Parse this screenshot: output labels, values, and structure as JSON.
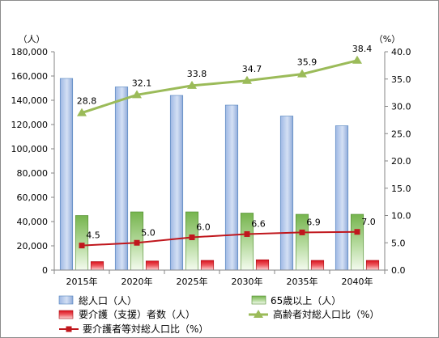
{
  "chart_data": {
    "type": "bar",
    "categories": [
      "2015年",
      "2020年",
      "2025年",
      "2030年",
      "2035年",
      "2040年"
    ],
    "left_axis": {
      "unit_label": "（人）",
      "range": [
        0,
        180000
      ],
      "ticks": [
        "0",
        "20,000",
        "40,000",
        "60,000",
        "80,000",
        "100,000",
        "120,000",
        "140,000",
        "160,000",
        "180,000"
      ]
    },
    "right_axis": {
      "unit_label": "（%）",
      "range": [
        0,
        40
      ],
      "ticks": [
        "0.0",
        "5.0",
        "10.0",
        "15.0",
        "20.0",
        "25.0",
        "30.0",
        "35.0",
        "40.0"
      ]
    },
    "grid": false,
    "legend_position": "bottom",
    "series": [
      {
        "name": "総人口（人）",
        "kind": "bar",
        "axis": "left",
        "color": "#4f81bd",
        "values": [
          158000,
          151000,
          144000,
          136000,
          127000,
          119000
        ]
      },
      {
        "name": "65歳以上（人）",
        "kind": "bar",
        "axis": "left",
        "color": "#70ad47",
        "values": [
          45000,
          48000,
          48000,
          47000,
          46000,
          46000
        ]
      },
      {
        "name": "要介護（支援）者数（人）",
        "kind": "bar",
        "axis": "left",
        "color": "#e0202a",
        "values": [
          7000,
          7500,
          8000,
          8500,
          8000,
          8000
        ]
      },
      {
        "name": "高齢者対総人口比（%）",
        "kind": "line",
        "axis": "right",
        "color": "#9bbb59",
        "marker": "triangle",
        "values": [
          28.8,
          32.1,
          33.8,
          34.7,
          35.9,
          38.4
        ],
        "labels": [
          "28.8",
          "32.1",
          "33.8",
          "34.7",
          "35.9",
          "38.4"
        ]
      },
      {
        "name": "要介護者等対総人口比（%）",
        "kind": "line",
        "axis": "right",
        "color": "#c0171d",
        "marker": "square",
        "values": [
          4.5,
          5.0,
          6.0,
          6.6,
          6.9,
          7.0
        ],
        "labels": [
          "4.5",
          "5.0",
          "6.0",
          "6.6",
          "6.9",
          "7.0"
        ]
      }
    ]
  }
}
